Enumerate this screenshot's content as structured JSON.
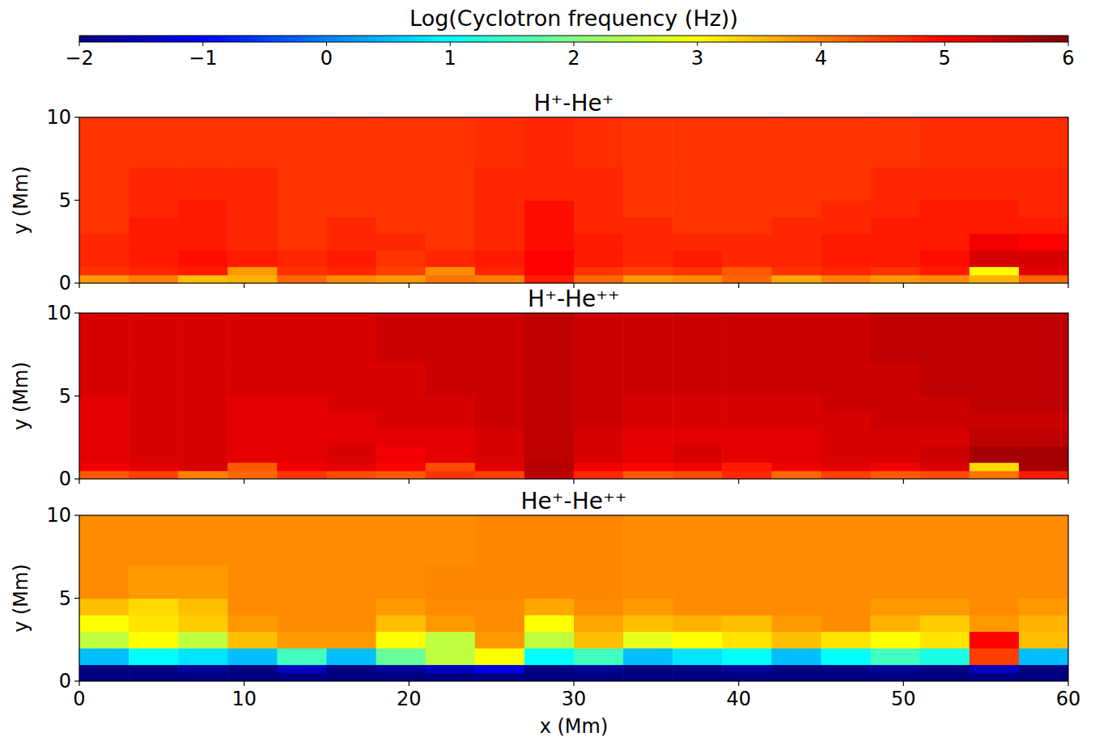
{
  "chart_data": [
    {
      "type": "heatmap",
      "title": "H⁺-He⁺",
      "y_label": "y (Mm)",
      "colorbar": {
        "label": "Log(Cyclotron frequency (Hz))",
        "range": [
          -2,
          6
        ],
        "ticks": [
          {
            "value": -2,
            "label": "−2"
          },
          {
            "value": -1,
            "label": "−1"
          },
          0,
          1,
          2,
          3,
          4,
          5,
          6
        ]
      },
      "xlim": [
        0,
        60
      ],
      "ylim": [
        0,
        10
      ],
      "xticks": [
        0,
        10,
        20,
        30,
        40,
        50,
        60
      ],
      "yticks": [
        0,
        5,
        10
      ],
      "tick_labels": "y",
      "x_edges": [
        0,
        3,
        6,
        9,
        12,
        15,
        18,
        21,
        24,
        27,
        30,
        33,
        36,
        39,
        42,
        45,
        48,
        51,
        54,
        57,
        60
      ],
      "y_edges": [
        0,
        0.5,
        1,
        2,
        3,
        4,
        5,
        7,
        10
      ],
      "values": [
        [
          3.8,
          4.0,
          3.5,
          3.6,
          4.2,
          3.9,
          3.8,
          4.1,
          4.0,
          4.8,
          4.2,
          3.8,
          3.9,
          4.2,
          3.7,
          4.0,
          3.8,
          3.9,
          3.6,
          4.2
        ],
        [
          4.6,
          4.7,
          4.8,
          3.8,
          4.6,
          4.7,
          4.5,
          3.9,
          4.7,
          5.0,
          4.6,
          4.5,
          4.6,
          4.3,
          4.6,
          4.7,
          4.6,
          4.8,
          3.0,
          5.2
        ],
        [
          4.7,
          4.8,
          4.9,
          4.8,
          4.7,
          4.8,
          4.6,
          4.7,
          4.8,
          5.0,
          4.8,
          4.7,
          4.8,
          4.7,
          4.7,
          4.8,
          4.8,
          4.9,
          5.3,
          5.3
        ],
        [
          4.7,
          4.8,
          4.8,
          4.7,
          4.6,
          4.7,
          4.7,
          4.6,
          4.7,
          4.9,
          4.8,
          4.7,
          4.7,
          4.7,
          4.7,
          4.8,
          4.8,
          4.8,
          5.1,
          5.0
        ],
        [
          4.6,
          4.8,
          4.8,
          4.7,
          4.6,
          4.7,
          4.6,
          4.6,
          4.7,
          4.9,
          4.7,
          4.7,
          4.6,
          4.6,
          4.7,
          4.7,
          4.8,
          4.8,
          4.8,
          4.8
        ],
        [
          4.6,
          4.7,
          4.8,
          4.7,
          4.6,
          4.6,
          4.6,
          4.6,
          4.7,
          4.9,
          4.7,
          4.6,
          4.6,
          4.6,
          4.6,
          4.7,
          4.7,
          4.8,
          4.8,
          4.7
        ],
        [
          4.6,
          4.7,
          4.7,
          4.7,
          4.6,
          4.6,
          4.6,
          4.6,
          4.7,
          4.7,
          4.7,
          4.6,
          4.6,
          4.6,
          4.6,
          4.6,
          4.7,
          4.7,
          4.7,
          4.7
        ],
        [
          4.6,
          4.6,
          4.6,
          4.6,
          4.6,
          4.6,
          4.6,
          4.6,
          4.65,
          4.7,
          4.65,
          4.6,
          4.6,
          4.6,
          4.6,
          4.6,
          4.6,
          4.65,
          4.65,
          4.65
        ]
      ]
    },
    {
      "type": "heatmap",
      "title": "H⁺-He⁺⁺",
      "y_label": "y (Mm)",
      "xlim": [
        0,
        60
      ],
      "ylim": [
        0,
        10
      ],
      "xticks": [
        0,
        10,
        20,
        30,
        40,
        50,
        60
      ],
      "yticks": [
        0,
        5,
        10
      ],
      "tick_labels": "y",
      "x_edges": [
        0,
        3,
        6,
        9,
        12,
        15,
        18,
        21,
        24,
        27,
        30,
        33,
        36,
        39,
        42,
        45,
        48,
        51,
        54,
        57,
        60
      ],
      "y_edges": [
        0,
        0.5,
        1,
        2,
        3,
        4,
        5,
        7,
        10
      ],
      "values": [
        [
          4.3,
          4.5,
          4.0,
          4.2,
          4.6,
          4.4,
          4.3,
          4.6,
          4.5,
          5.5,
          4.7,
          4.3,
          4.4,
          4.7,
          4.2,
          4.5,
          4.3,
          4.4,
          4.1,
          4.8
        ],
        [
          5.1,
          5.2,
          5.3,
          4.3,
          5.1,
          5.2,
          5.0,
          4.4,
          5.2,
          5.6,
          5.1,
          5.0,
          5.1,
          4.8,
          5.1,
          5.2,
          5.1,
          5.3,
          3.3,
          5.7
        ],
        [
          5.2,
          5.3,
          5.3,
          5.2,
          5.2,
          5.3,
          5.1,
          5.2,
          5.3,
          5.5,
          5.3,
          5.2,
          5.3,
          5.2,
          5.2,
          5.3,
          5.3,
          5.4,
          5.7,
          5.7
        ],
        [
          5.2,
          5.3,
          5.3,
          5.2,
          5.2,
          5.2,
          5.2,
          5.2,
          5.3,
          5.5,
          5.3,
          5.2,
          5.2,
          5.2,
          5.2,
          5.3,
          5.3,
          5.3,
          5.5,
          5.5
        ],
        [
          5.2,
          5.3,
          5.3,
          5.2,
          5.2,
          5.2,
          5.3,
          5.3,
          5.4,
          5.5,
          5.4,
          5.3,
          5.3,
          5.3,
          5.3,
          5.3,
          5.4,
          5.4,
          5.4,
          5.4
        ],
        [
          5.2,
          5.3,
          5.3,
          5.2,
          5.2,
          5.3,
          5.3,
          5.3,
          5.4,
          5.5,
          5.4,
          5.3,
          5.3,
          5.3,
          5.3,
          5.4,
          5.4,
          5.4,
          5.5,
          5.5
        ],
        [
          5.3,
          5.3,
          5.3,
          5.3,
          5.3,
          5.3,
          5.3,
          5.4,
          5.4,
          5.5,
          5.4,
          5.4,
          5.4,
          5.4,
          5.4,
          5.4,
          5.4,
          5.5,
          5.5,
          5.5
        ],
        [
          5.3,
          5.3,
          5.3,
          5.3,
          5.3,
          5.3,
          5.4,
          5.4,
          5.4,
          5.5,
          5.4,
          5.4,
          5.4,
          5.4,
          5.4,
          5.4,
          5.5,
          5.5,
          5.5,
          5.5
        ]
      ]
    },
    {
      "type": "heatmap",
      "title": "He⁺-He⁺⁺",
      "y_label": "y (Mm)",
      "x_label": "x (Mm)",
      "xlim": [
        0,
        60
      ],
      "ylim": [
        0,
        10
      ],
      "xticks": [
        0,
        10,
        20,
        30,
        40,
        50,
        60
      ],
      "yticks": [
        0,
        5,
        10
      ],
      "x_edges": [
        0,
        3,
        6,
        9,
        12,
        15,
        18,
        21,
        24,
        27,
        30,
        33,
        36,
        39,
        42,
        45,
        48,
        51,
        54,
        57,
        60
      ],
      "y_edges": [
        0,
        0.5,
        1,
        2,
        3,
        4,
        5,
        7,
        10
      ],
      "values": [
        [
          -2,
          -2,
          -2,
          -2,
          -2,
          -2,
          -2,
          -2,
          -2,
          -2,
          -2,
          -2,
          -2,
          -2,
          -2,
          -2,
          -2,
          -2,
          -2,
          -2
        ],
        [
          -2,
          -2,
          -1.8,
          -2,
          -1.5,
          -2,
          -1.8,
          -1.5,
          -1.2,
          -2,
          -1.8,
          -2,
          -2,
          -1.8,
          -2,
          -2,
          -1.8,
          -2,
          -1.5,
          -2
        ],
        [
          0.5,
          1.0,
          0.8,
          0.5,
          1.5,
          0.5,
          1.8,
          2.5,
          3.0,
          1.0,
          1.5,
          0.5,
          0.8,
          1.0,
          0.5,
          1.0,
          1.5,
          1.2,
          4.5,
          0.5
        ],
        [
          2.5,
          3.0,
          2.5,
          3.5,
          3.8,
          3.8,
          3.0,
          2.5,
          3.8,
          2.5,
          3.5,
          2.8,
          3.0,
          3.2,
          3.5,
          3.2,
          3.0,
          3.2,
          5.0,
          3.5
        ],
        [
          3.0,
          3.2,
          3.4,
          3.8,
          3.9,
          3.9,
          3.5,
          3.8,
          3.9,
          3.0,
          3.7,
          3.5,
          3.6,
          3.5,
          3.8,
          3.9,
          3.6,
          3.4,
          3.8,
          3.6
        ],
        [
          3.5,
          3.3,
          3.5,
          3.9,
          3.9,
          3.9,
          3.8,
          3.9,
          3.9,
          3.7,
          3.9,
          3.8,
          3.9,
          3.9,
          3.9,
          3.9,
          3.8,
          3.8,
          3.9,
          3.8
        ],
        [
          3.9,
          3.8,
          3.8,
          3.9,
          3.9,
          3.9,
          3.9,
          3.95,
          3.95,
          3.95,
          3.95,
          3.9,
          3.9,
          3.9,
          3.9,
          3.9,
          3.9,
          3.9,
          3.9,
          3.9
        ],
        [
          3.9,
          3.9,
          3.9,
          3.9,
          3.9,
          3.9,
          3.9,
          3.9,
          3.95,
          3.95,
          3.95,
          3.9,
          3.9,
          3.9,
          3.9,
          3.9,
          3.9,
          3.9,
          3.9,
          3.9
        ]
      ]
    }
  ]
}
